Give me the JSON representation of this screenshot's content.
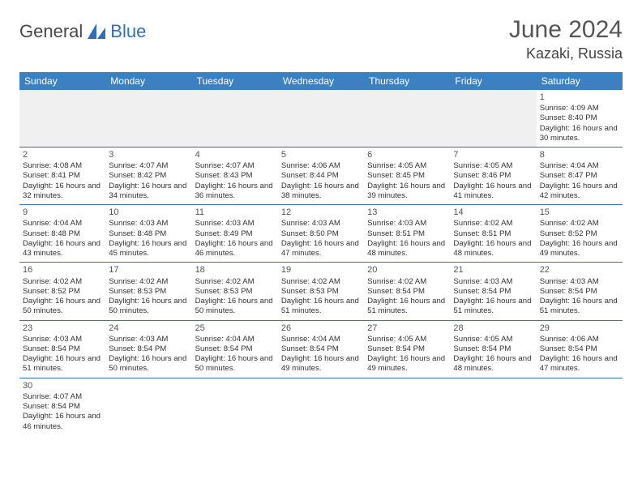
{
  "logo": {
    "text1": "General",
    "text2": "Blue"
  },
  "title": "June 2024",
  "location": "Kazaki, Russia",
  "colors": {
    "header_bg": "#3b81c2",
    "header_text": "#ffffff",
    "rule": "#2f6fb5",
    "blank_bg": "#f0f0f0",
    "text": "#333333",
    "logo_gray": "#474747",
    "logo_blue": "#2f6fb5"
  },
  "day_headers": [
    "Sunday",
    "Monday",
    "Tuesday",
    "Wednesday",
    "Thursday",
    "Friday",
    "Saturday"
  ],
  "weeks": [
    [
      null,
      null,
      null,
      null,
      null,
      null,
      {
        "n": "1",
        "sr": "Sunrise: 4:09 AM",
        "ss": "Sunset: 8:40 PM",
        "dl": "Daylight: 16 hours and 30 minutes."
      }
    ],
    [
      {
        "n": "2",
        "sr": "Sunrise: 4:08 AM",
        "ss": "Sunset: 8:41 PM",
        "dl": "Daylight: 16 hours and 32 minutes."
      },
      {
        "n": "3",
        "sr": "Sunrise: 4:07 AM",
        "ss": "Sunset: 8:42 PM",
        "dl": "Daylight: 16 hours and 34 minutes."
      },
      {
        "n": "4",
        "sr": "Sunrise: 4:07 AM",
        "ss": "Sunset: 8:43 PM",
        "dl": "Daylight: 16 hours and 36 minutes."
      },
      {
        "n": "5",
        "sr": "Sunrise: 4:06 AM",
        "ss": "Sunset: 8:44 PM",
        "dl": "Daylight: 16 hours and 38 minutes."
      },
      {
        "n": "6",
        "sr": "Sunrise: 4:05 AM",
        "ss": "Sunset: 8:45 PM",
        "dl": "Daylight: 16 hours and 39 minutes."
      },
      {
        "n": "7",
        "sr": "Sunrise: 4:05 AM",
        "ss": "Sunset: 8:46 PM",
        "dl": "Daylight: 16 hours and 41 minutes."
      },
      {
        "n": "8",
        "sr": "Sunrise: 4:04 AM",
        "ss": "Sunset: 8:47 PM",
        "dl": "Daylight: 16 hours and 42 minutes."
      }
    ],
    [
      {
        "n": "9",
        "sr": "Sunrise: 4:04 AM",
        "ss": "Sunset: 8:48 PM",
        "dl": "Daylight: 16 hours and 43 minutes."
      },
      {
        "n": "10",
        "sr": "Sunrise: 4:03 AM",
        "ss": "Sunset: 8:48 PM",
        "dl": "Daylight: 16 hours and 45 minutes."
      },
      {
        "n": "11",
        "sr": "Sunrise: 4:03 AM",
        "ss": "Sunset: 8:49 PM",
        "dl": "Daylight: 16 hours and 46 minutes."
      },
      {
        "n": "12",
        "sr": "Sunrise: 4:03 AM",
        "ss": "Sunset: 8:50 PM",
        "dl": "Daylight: 16 hours and 47 minutes."
      },
      {
        "n": "13",
        "sr": "Sunrise: 4:03 AM",
        "ss": "Sunset: 8:51 PM",
        "dl": "Daylight: 16 hours and 48 minutes."
      },
      {
        "n": "14",
        "sr": "Sunrise: 4:02 AM",
        "ss": "Sunset: 8:51 PM",
        "dl": "Daylight: 16 hours and 48 minutes."
      },
      {
        "n": "15",
        "sr": "Sunrise: 4:02 AM",
        "ss": "Sunset: 8:52 PM",
        "dl": "Daylight: 16 hours and 49 minutes."
      }
    ],
    [
      {
        "n": "16",
        "sr": "Sunrise: 4:02 AM",
        "ss": "Sunset: 8:52 PM",
        "dl": "Daylight: 16 hours and 50 minutes."
      },
      {
        "n": "17",
        "sr": "Sunrise: 4:02 AM",
        "ss": "Sunset: 8:53 PM",
        "dl": "Daylight: 16 hours and 50 minutes."
      },
      {
        "n": "18",
        "sr": "Sunrise: 4:02 AM",
        "ss": "Sunset: 8:53 PM",
        "dl": "Daylight: 16 hours and 50 minutes."
      },
      {
        "n": "19",
        "sr": "Sunrise: 4:02 AM",
        "ss": "Sunset: 8:53 PM",
        "dl": "Daylight: 16 hours and 51 minutes."
      },
      {
        "n": "20",
        "sr": "Sunrise: 4:02 AM",
        "ss": "Sunset: 8:54 PM",
        "dl": "Daylight: 16 hours and 51 minutes."
      },
      {
        "n": "21",
        "sr": "Sunrise: 4:03 AM",
        "ss": "Sunset: 8:54 PM",
        "dl": "Daylight: 16 hours and 51 minutes."
      },
      {
        "n": "22",
        "sr": "Sunrise: 4:03 AM",
        "ss": "Sunset: 8:54 PM",
        "dl": "Daylight: 16 hours and 51 minutes."
      }
    ],
    [
      {
        "n": "23",
        "sr": "Sunrise: 4:03 AM",
        "ss": "Sunset: 8:54 PM",
        "dl": "Daylight: 16 hours and 51 minutes."
      },
      {
        "n": "24",
        "sr": "Sunrise: 4:03 AM",
        "ss": "Sunset: 8:54 PM",
        "dl": "Daylight: 16 hours and 50 minutes."
      },
      {
        "n": "25",
        "sr": "Sunrise: 4:04 AM",
        "ss": "Sunset: 8:54 PM",
        "dl": "Daylight: 16 hours and 50 minutes."
      },
      {
        "n": "26",
        "sr": "Sunrise: 4:04 AM",
        "ss": "Sunset: 8:54 PM",
        "dl": "Daylight: 16 hours and 49 minutes."
      },
      {
        "n": "27",
        "sr": "Sunrise: 4:05 AM",
        "ss": "Sunset: 8:54 PM",
        "dl": "Daylight: 16 hours and 49 minutes."
      },
      {
        "n": "28",
        "sr": "Sunrise: 4:05 AM",
        "ss": "Sunset: 8:54 PM",
        "dl": "Daylight: 16 hours and 48 minutes."
      },
      {
        "n": "29",
        "sr": "Sunrise: 4:06 AM",
        "ss": "Sunset: 8:54 PM",
        "dl": "Daylight: 16 hours and 47 minutes."
      }
    ],
    [
      {
        "n": "30",
        "sr": "Sunrise: 4:07 AM",
        "ss": "Sunset: 8:54 PM",
        "dl": "Daylight: 16 hours and 46 minutes."
      },
      null,
      null,
      null,
      null,
      null,
      null
    ]
  ]
}
